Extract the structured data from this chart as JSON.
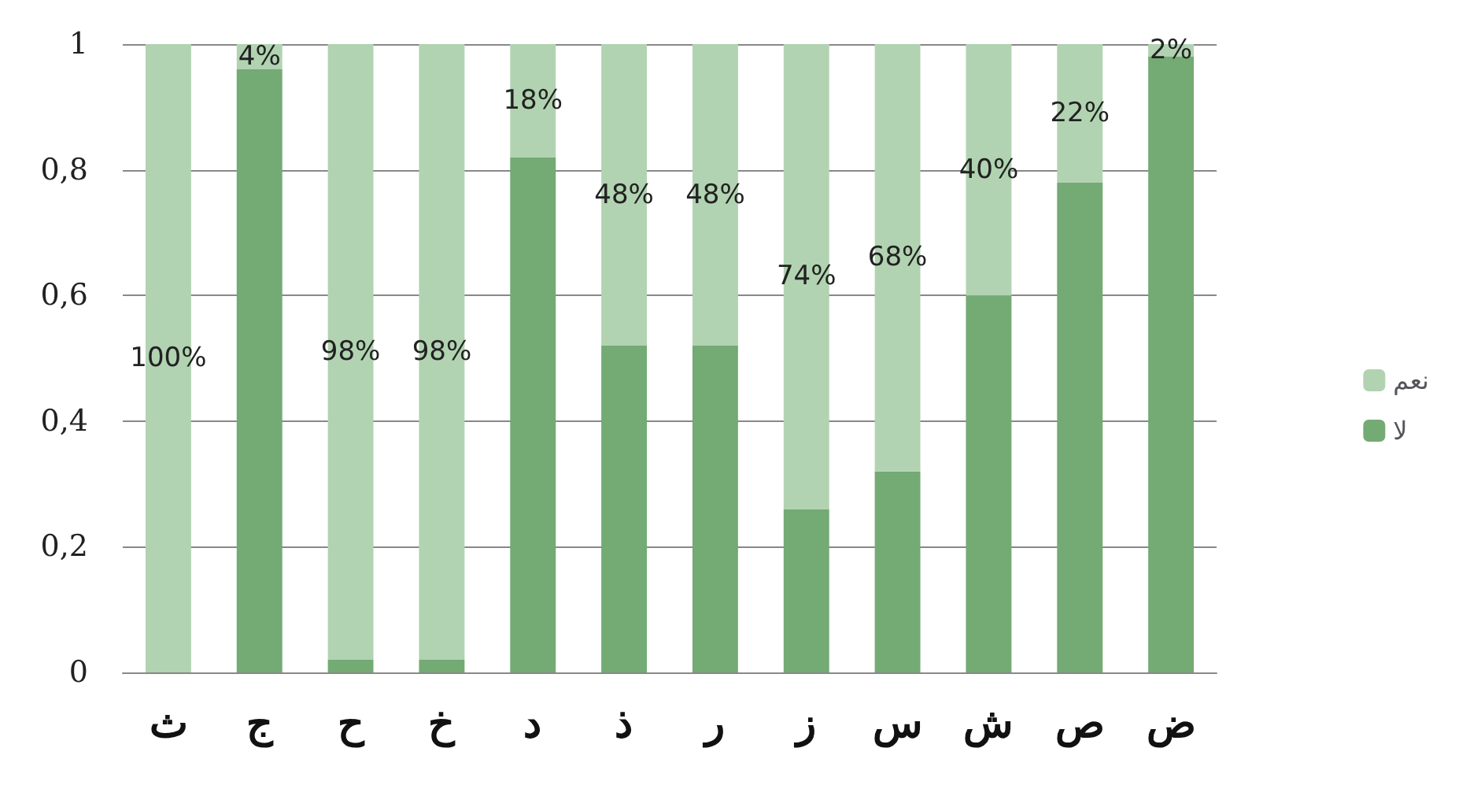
{
  "chart_data": {
    "type": "bar",
    "stacked": true,
    "categories": [
      "ث",
      "ج",
      "ح",
      "خ",
      "د",
      "ذ",
      "ر",
      "ز",
      "س",
      "ش",
      "ص",
      "ض"
    ],
    "series": [
      {
        "name": "لا",
        "color": "#74aa74",
        "values": [
          0,
          0.96,
          0.02,
          0.02,
          0.82,
          0.52,
          0.52,
          0.26,
          0.32,
          0.6,
          0.78,
          0.98
        ]
      },
      {
        "name": "نعم",
        "color": "#b1d3b1",
        "values": [
          1,
          0.04,
          0.98,
          0.98,
          0.18,
          0.48,
          0.48,
          0.74,
          0.68,
          0.4,
          0.22,
          0.02
        ],
        "value_labels": [
          "100%",
          "4%",
          "98%",
          "98%",
          "18%",
          "48%",
          "48%",
          "74%",
          "68%",
          "40%",
          "22%",
          "2%"
        ]
      }
    ],
    "ylim": [
      0,
      1
    ],
    "yticks": [
      0,
      {
        "value": 0.2,
        "label": "0,2"
      },
      {
        "value": 0.4,
        "label": "0,4"
      },
      {
        "value": 0.6,
        "label": "0,6"
      },
      {
        "value": 0.8,
        "label": "0,8"
      },
      1
    ],
    "grid": "y",
    "legend": "right"
  }
}
